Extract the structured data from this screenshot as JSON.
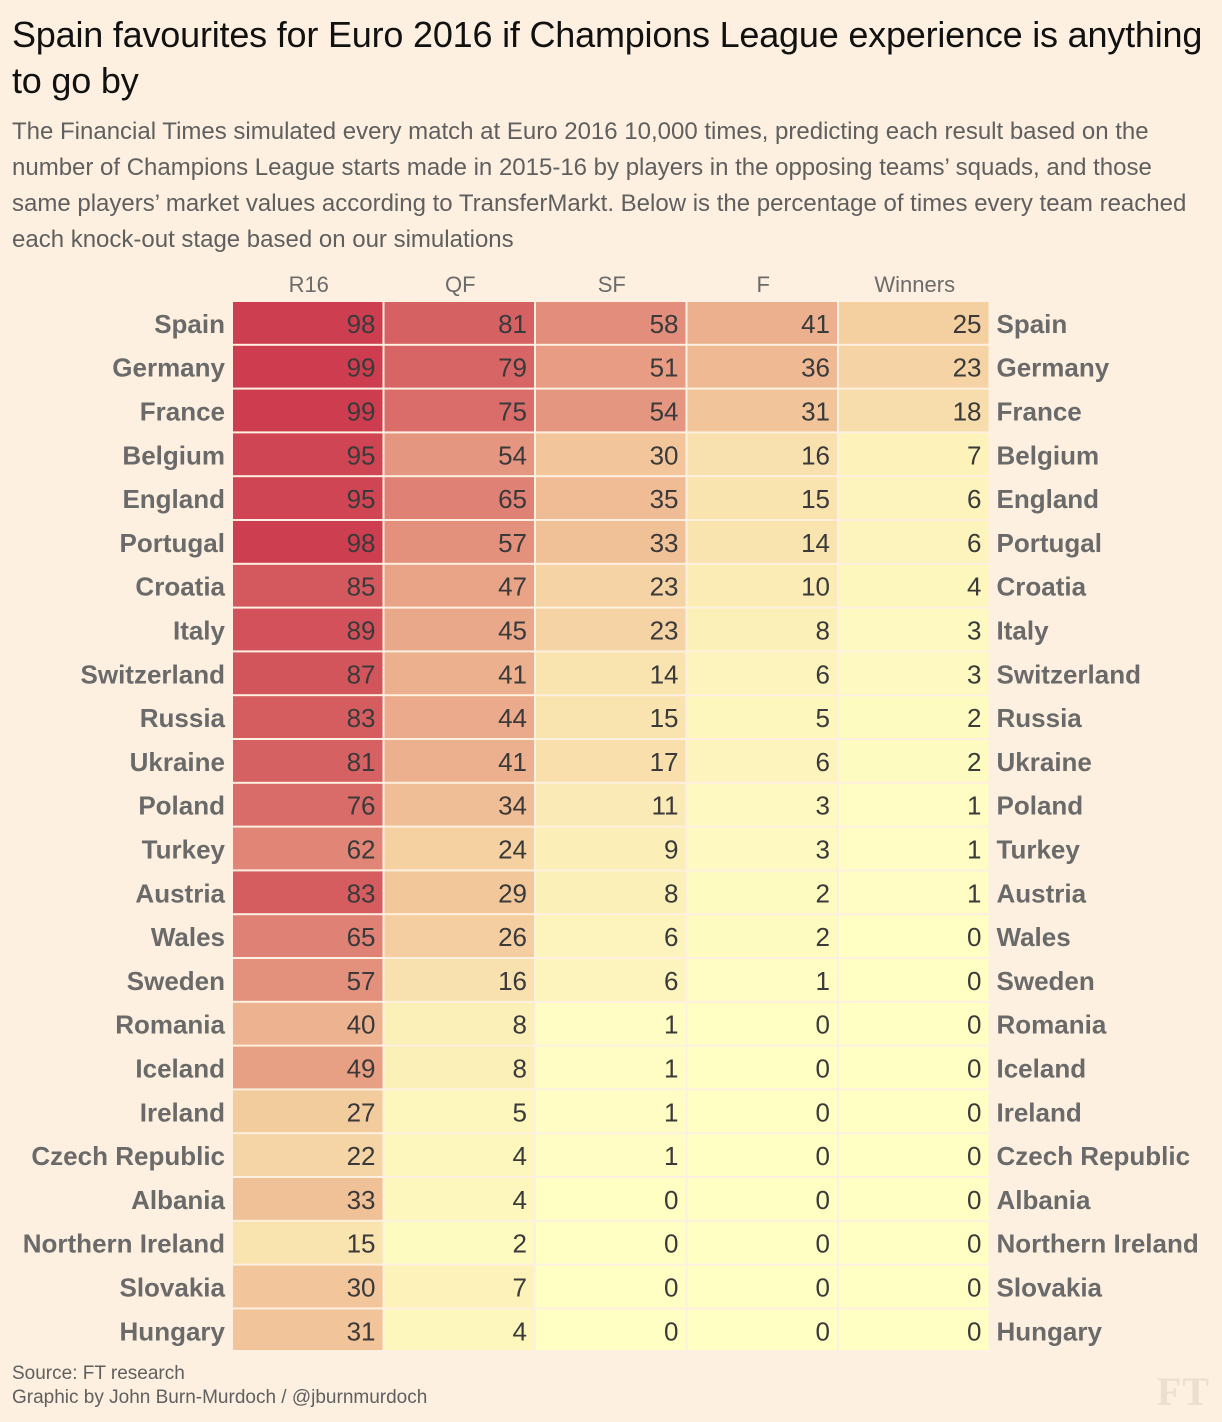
{
  "title": "Spain favourites for Euro 2016 if Champions League experience is anything to go by",
  "subtitle": "The Financial Times simulated every match at Euro 2016 10,000 times, predicting each result based on the number of Champions League starts made in 2015-16 by players in the opposing teams’ squads, and those same players’ market values according to TransferMarkt. Below is the percentage of times every team reached each knock-out stage based on our simulations",
  "source": {
    "line1": "Source: FT research",
    "line2": "Graphic by John Burn-Murdoch / @jburnmurdoch"
  },
  "logo": "FT",
  "colors": {
    "background": "#fdf0e0",
    "scale_low": "#ffffc4",
    "scale_mid": "#f2c69a",
    "scale_high": "#cc3b4e"
  },
  "chart_data": {
    "type": "heatmap",
    "columns": [
      "R16",
      "QF",
      "SF",
      "F",
      "Winners"
    ],
    "rows": [
      "Spain",
      "Germany",
      "France",
      "Belgium",
      "England",
      "Portugal",
      "Croatia",
      "Italy",
      "Switzerland",
      "Russia",
      "Ukraine",
      "Poland",
      "Turkey",
      "Austria",
      "Wales",
      "Sweden",
      "Romania",
      "Iceland",
      "Ireland",
      "Czech Republic",
      "Albania",
      "Northern Ireland",
      "Slovakia",
      "Hungary"
    ],
    "values": [
      [
        98,
        81,
        58,
        41,
        25
      ],
      [
        99,
        79,
        51,
        36,
        23
      ],
      [
        99,
        75,
        54,
        31,
        18
      ],
      [
        95,
        54,
        30,
        16,
        7
      ],
      [
        95,
        65,
        35,
        15,
        6
      ],
      [
        98,
        57,
        33,
        14,
        6
      ],
      [
        85,
        47,
        23,
        10,
        4
      ],
      [
        89,
        45,
        23,
        8,
        3
      ],
      [
        87,
        41,
        14,
        6,
        3
      ],
      [
        83,
        44,
        15,
        5,
        2
      ],
      [
        81,
        41,
        17,
        6,
        2
      ],
      [
        76,
        34,
        11,
        3,
        1
      ],
      [
        62,
        24,
        9,
        3,
        1
      ],
      [
        83,
        29,
        8,
        2,
        1
      ],
      [
        65,
        26,
        6,
        2,
        0
      ],
      [
        57,
        16,
        6,
        1,
        0
      ],
      [
        40,
        8,
        1,
        0,
        0
      ],
      [
        49,
        8,
        1,
        0,
        0
      ],
      [
        27,
        5,
        1,
        0,
        0
      ],
      [
        22,
        4,
        1,
        0,
        0
      ],
      [
        33,
        4,
        0,
        0,
        0
      ],
      [
        15,
        2,
        0,
        0,
        0
      ],
      [
        30,
        7,
        0,
        0,
        0
      ],
      [
        31,
        4,
        0,
        0,
        0
      ]
    ],
    "value_range": [
      0,
      100
    ]
  }
}
